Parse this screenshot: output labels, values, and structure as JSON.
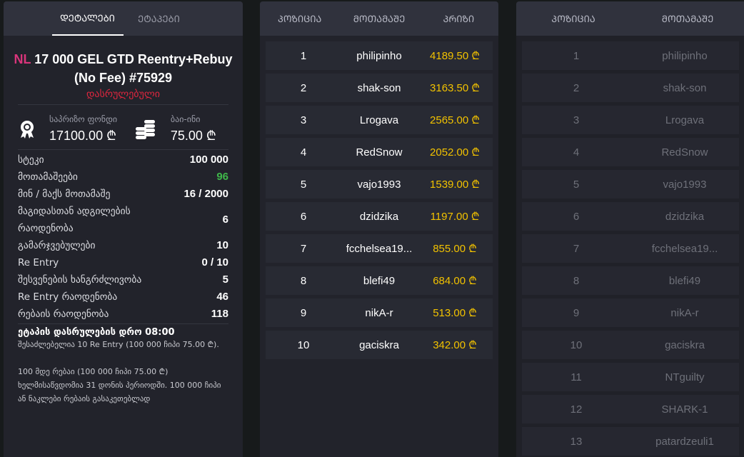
{
  "left": {
    "tabs": [
      "ᲓᲔᲢᲐᲚᲔᲑᲘ",
      "ᲔᲢᲐᲞᲔᲑᲘ"
    ],
    "title_prefix": "NL",
    "title": "17 000 GEL GTD Reentry+Rebuy (No Fee) #75929",
    "status": "დასრულებული",
    "prize_pool_label": "საპრიზო ფონდი",
    "prize_pool": "17100.00 ₾",
    "buyin_label": "ბაი-ინი",
    "buyin": "75.00 ₾",
    "stats": [
      {
        "k": "სტეკი",
        "v": "100 000"
      },
      {
        "k": "მოთამაშეები",
        "v": "96"
      },
      {
        "k": "მინ / მაქს მოთამაშე",
        "v": "16 / 2000"
      },
      {
        "k": "მაგიდასთან ადგილების რაოდენობა",
        "v": "6"
      },
      {
        "k": "გამარჯვებულები",
        "v": "10"
      },
      {
        "k": "Re Entry",
        "v": "0 / 10"
      },
      {
        "k": "შესვენების ხანგრძლივობა",
        "v": "5"
      },
      {
        "k": "Re Entry რაოდენობა",
        "v": "46"
      },
      {
        "k": "რებაის რაოდენობა",
        "v": "118"
      }
    ],
    "end_time": "ეტაპის დასრულების დრო 08:00",
    "note": "შესაძლებელია 10 Re Entry (100 000 ჩიპი 75.00 ₾).\n\n100 მდე რებაი (100 000 ჩიპი 75.00 ₾) ხელმისაწვდომია 31 დონის პერიოდში. 100 000 ჩიპი ან ნაკლები რებაის გასაკეთებლად"
  },
  "colors": {
    "accent_prize": "#f2c200",
    "status": "#e0263f",
    "players": "#3fb84a",
    "nl": "#d9357b"
  },
  "prizes": {
    "headers": [
      "ᲞᲝᲖᲘᲪᲘᲐ",
      "ᲛᲝᲗᲐᲛᲐᲨᲔ",
      "ᲞᲠᲘᲖᲘ"
    ],
    "rows": [
      [
        "1",
        "philipinho",
        "4189.50 ₾"
      ],
      [
        "2",
        "shak-son",
        "3163.50 ₾"
      ],
      [
        "3",
        "Lrogava",
        "2565.00 ₾"
      ],
      [
        "4",
        "RedSnow",
        "2052.00 ₾"
      ],
      [
        "5",
        "vajo1993",
        "1539.00 ₾"
      ],
      [
        "6",
        "dzidzika",
        "1197.00 ₾"
      ],
      [
        "7",
        "fcchelsea19...",
        "855.00 ₾"
      ],
      [
        "8",
        "blefi49",
        "684.00 ₾"
      ],
      [
        "9",
        "nikA-r",
        "513.00 ₾"
      ],
      [
        "10",
        "gaciskra",
        "342.00 ₾"
      ]
    ]
  },
  "players": {
    "headers": [
      "ᲞᲝᲖᲘᲪᲘᲐ",
      "ᲛᲝᲗᲐᲛᲐᲨᲔ"
    ],
    "rows": [
      [
        "1",
        "philipinho"
      ],
      [
        "2",
        "shak-son"
      ],
      [
        "3",
        "Lrogava"
      ],
      [
        "4",
        "RedSnow"
      ],
      [
        "5",
        "vajo1993"
      ],
      [
        "6",
        "dzidzika"
      ],
      [
        "7",
        "fcchelsea19..."
      ],
      [
        "8",
        "blefi49"
      ],
      [
        "9",
        "nikA-r"
      ],
      [
        "10",
        "gaciskra"
      ],
      [
        "11",
        "NTguilty"
      ],
      [
        "12",
        "SHARK-1"
      ],
      [
        "13",
        "patardzeuli1"
      ]
    ]
  }
}
